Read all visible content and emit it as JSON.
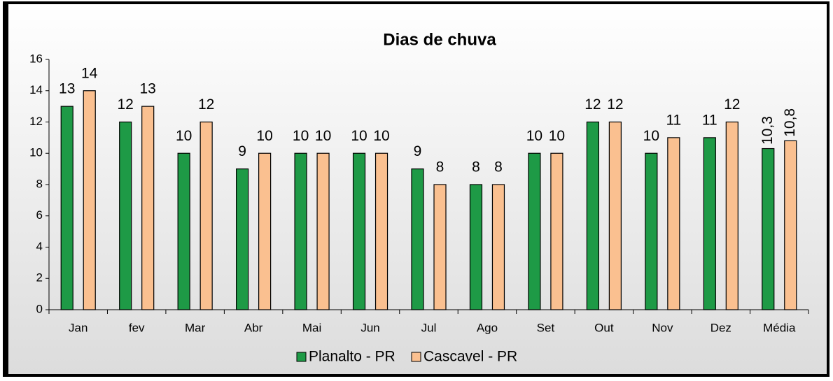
{
  "chart_data": {
    "type": "bar",
    "title": "Dias de chuva",
    "categories": [
      "Jan",
      "fev",
      "Mar",
      "Abr",
      "Mai",
      "Jun",
      "Jul",
      "Ago",
      "Set",
      "Out",
      "Nov",
      "Dez",
      "Média"
    ],
    "series": [
      {
        "name": "Planalto - PR",
        "color": "#1e9a46",
        "values": [
          13,
          12,
          10,
          9,
          10,
          10,
          9,
          8,
          10,
          12,
          10,
          11,
          10.3
        ],
        "value_labels": [
          "13",
          "12",
          "10",
          "9",
          "10",
          "10",
          "9",
          "8",
          "10",
          "12",
          "10",
          "11",
          "10,3"
        ]
      },
      {
        "name": "Cascavel - PR",
        "color": "#fac090",
        "values": [
          14,
          13,
          12,
          10,
          10,
          10,
          8,
          8,
          10,
          12,
          11,
          12,
          10.8
        ],
        "value_labels": [
          "14",
          "13",
          "12",
          "10",
          "10",
          "10",
          "8",
          "8",
          "10",
          "12",
          "11",
          "12",
          "10,8"
        ]
      }
    ],
    "ylim": [
      0,
      16
    ],
    "yticks": [
      0,
      2,
      4,
      6,
      8,
      10,
      12,
      14,
      16
    ],
    "legend": "bottom"
  }
}
